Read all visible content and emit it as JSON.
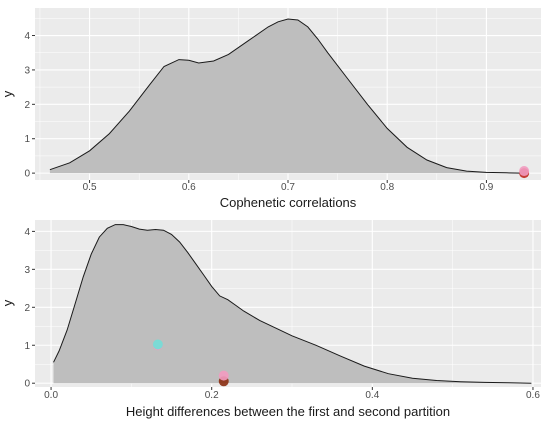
{
  "chart_data": [
    {
      "type": "area",
      "title": "",
      "xlabel": "Cophenetic correlations",
      "ylabel": "y",
      "xlim": [
        0.445,
        0.955
      ],
      "ylim": [
        -0.2,
        4.8
      ],
      "x_ticks": [
        0.5,
        0.6,
        0.7,
        0.8,
        0.9
      ],
      "x_tick_labels": [
        "0.5",
        "0.6",
        "0.7",
        "0.8",
        "0.9"
      ],
      "y_ticks": [
        0,
        1,
        2,
        3,
        4
      ],
      "y_tick_labels": [
        "0",
        "1",
        "2",
        "3",
        "4"
      ],
      "grid": true,
      "colors": {
        "panel": "#ebebeb",
        "grid": "#ffffff",
        "fill": "#bebebe",
        "line": "#1a1a1a"
      },
      "series": [
        {
          "x": [
            0.46,
            0.48,
            0.5,
            0.52,
            0.54,
            0.56,
            0.575,
            0.59,
            0.6,
            0.61,
            0.625,
            0.64,
            0.66,
            0.68,
            0.69,
            0.7,
            0.71,
            0.72,
            0.73,
            0.74,
            0.76,
            0.78,
            0.8,
            0.82,
            0.84,
            0.86,
            0.88,
            0.9,
            0.92,
            0.935,
            0.94
          ],
          "y": [
            0.1,
            0.3,
            0.65,
            1.15,
            1.8,
            2.55,
            3.1,
            3.3,
            3.28,
            3.2,
            3.26,
            3.45,
            3.85,
            4.25,
            4.4,
            4.48,
            4.45,
            4.25,
            3.9,
            3.5,
            2.75,
            2.0,
            1.3,
            0.75,
            0.38,
            0.16,
            0.06,
            0.02,
            0.01,
            0.0,
            0.0
          ]
        }
      ],
      "points": [
        {
          "x": 0.938,
          "y": 0.0,
          "color": "#c0281f",
          "label": ""
        },
        {
          "x": 0.938,
          "y": 0.06,
          "color": "#f29bc0",
          "label": ""
        }
      ]
    },
    {
      "type": "area",
      "title": "",
      "xlabel": "Height differences between the first and second partition",
      "ylabel": "y",
      "xlim": [
        -0.02,
        0.61
      ],
      "ylim": [
        -0.1,
        4.3
      ],
      "x_ticks": [
        0.0,
        0.2,
        0.4,
        0.6
      ],
      "x_tick_labels": [
        "0.0",
        "0.2",
        "0.4",
        "0.6"
      ],
      "y_ticks": [
        0,
        1,
        2,
        3,
        4
      ],
      "y_tick_labels": [
        "0",
        "1",
        "2",
        "3",
        "4"
      ],
      "grid": true,
      "colors": {
        "panel": "#ebebeb",
        "grid": "#ffffff",
        "fill": "#bebebe",
        "line": "#1a1a1a"
      },
      "series": [
        {
          "x": [
            0.003,
            0.01,
            0.02,
            0.03,
            0.04,
            0.05,
            0.06,
            0.07,
            0.08,
            0.09,
            0.1,
            0.11,
            0.12,
            0.13,
            0.14,
            0.15,
            0.16,
            0.17,
            0.18,
            0.19,
            0.2,
            0.21,
            0.22,
            0.23,
            0.24,
            0.26,
            0.28,
            0.3,
            0.33,
            0.36,
            0.39,
            0.42,
            0.45,
            0.48,
            0.51,
            0.54,
            0.57,
            0.598
          ],
          "y": [
            0.55,
            0.85,
            1.4,
            2.1,
            2.8,
            3.4,
            3.85,
            4.08,
            4.18,
            4.18,
            4.13,
            4.06,
            4.03,
            4.05,
            4.03,
            3.92,
            3.72,
            3.45,
            3.15,
            2.85,
            2.55,
            2.3,
            2.2,
            2.05,
            1.9,
            1.65,
            1.45,
            1.25,
            1.0,
            0.72,
            0.45,
            0.25,
            0.13,
            0.07,
            0.04,
            0.02,
            0.01,
            0.0
          ]
        }
      ],
      "points": [
        {
          "x": 0.215,
          "y": 0.05,
          "color": "#8b2f12",
          "label": ""
        },
        {
          "x": 0.215,
          "y": 0.2,
          "color": "#f29bc0",
          "label": ""
        },
        {
          "x": 0.133,
          "y": 1.0,
          "color": "#f29bc0",
          "label": ""
        },
        {
          "x": 0.133,
          "y": 1.02,
          "color": "#6fe0d7",
          "label": ""
        }
      ]
    }
  ]
}
